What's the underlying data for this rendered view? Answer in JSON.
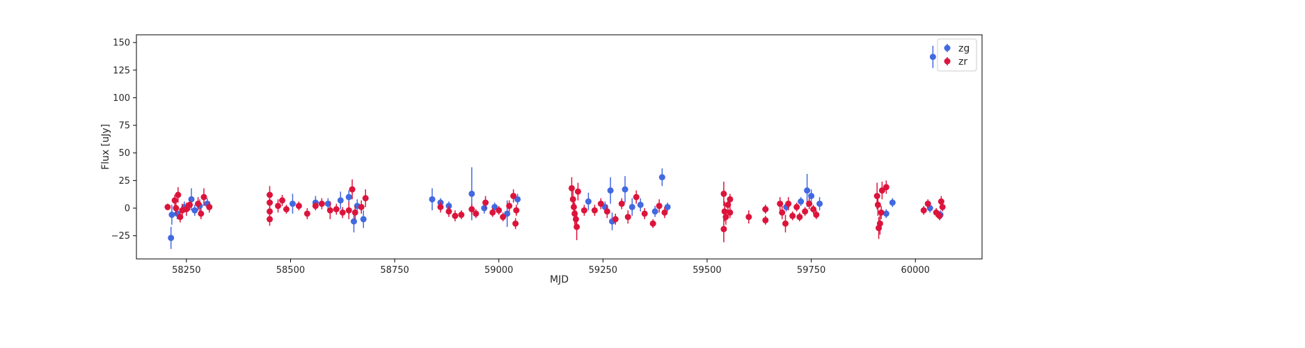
{
  "chart_data": {
    "type": "scatter",
    "xlabel": "MJD",
    "ylabel": "Flux [uJy]",
    "xlim": [
      58130,
      60160
    ],
    "ylim": [
      -46,
      157
    ],
    "xticks": [
      58250,
      58500,
      58750,
      59000,
      59250,
      59500,
      59750,
      60000
    ],
    "yticks": [
      -25,
      0,
      25,
      50,
      75,
      100,
      125,
      150
    ],
    "grid": false,
    "legend_position": "top-right",
    "series": [
      {
        "name": "zg",
        "color": "#4169e1",
        "points": [
          {
            "x": 58213,
            "y": -27,
            "err": 10
          },
          {
            "x": 58215,
            "y": -6,
            "err": 9
          },
          {
            "x": 58228,
            "y": -5,
            "err": 5
          },
          {
            "x": 58245,
            "y": 1,
            "err": 5
          },
          {
            "x": 58262,
            "y": 8,
            "err": 10
          },
          {
            "x": 58270,
            "y": -2,
            "err": 5
          },
          {
            "x": 58282,
            "y": 2,
            "err": 6
          },
          {
            "x": 58300,
            "y": 4,
            "err": 5
          },
          {
            "x": 58505,
            "y": 4,
            "err": 9
          },
          {
            "x": 58560,
            "y": 5,
            "err": 6
          },
          {
            "x": 58590,
            "y": 4,
            "err": 5
          },
          {
            "x": 58620,
            "y": 7,
            "err": 8
          },
          {
            "x": 58640,
            "y": 10,
            "err": 6
          },
          {
            "x": 58652,
            "y": -12,
            "err": 10
          },
          {
            "x": 58660,
            "y": 2,
            "err": 6
          },
          {
            "x": 58675,
            "y": -10,
            "err": 8
          },
          {
            "x": 58840,
            "y": 8,
            "err": 10
          },
          {
            "x": 58860,
            "y": 5,
            "err": 4
          },
          {
            "x": 58880,
            "y": 2,
            "err": 4
          },
          {
            "x": 58935,
            "y": 13,
            "err": 24
          },
          {
            "x": 58965,
            "y": 0,
            "err": 5
          },
          {
            "x": 58990,
            "y": 1,
            "err": 4
          },
          {
            "x": 59020,
            "y": -5,
            "err": 12
          },
          {
            "x": 59045,
            "y": 8,
            "err": 5
          },
          {
            "x": 59215,
            "y": 6,
            "err": 8
          },
          {
            "x": 59255,
            "y": 1,
            "err": 5
          },
          {
            "x": 59268,
            "y": 16,
            "err": 12
          },
          {
            "x": 59272,
            "y": -12,
            "err": 8
          },
          {
            "x": 59303,
            "y": 17,
            "err": 12
          },
          {
            "x": 59320,
            "y": 1,
            "err": 8
          },
          {
            "x": 59340,
            "y": 3,
            "err": 6
          },
          {
            "x": 59375,
            "y": -3,
            "err": 5
          },
          {
            "x": 59392,
            "y": 28,
            "err": 8
          },
          {
            "x": 59405,
            "y": 1,
            "err": 4
          },
          {
            "x": 59640,
            "y": -1,
            "err": 4
          },
          {
            "x": 59690,
            "y": 1,
            "err": 4
          },
          {
            "x": 59725,
            "y": 6,
            "err": 4
          },
          {
            "x": 59740,
            "y": 16,
            "err": 15
          },
          {
            "x": 59750,
            "y": 11,
            "err": 6
          },
          {
            "x": 59770,
            "y": 4,
            "err": 6
          },
          {
            "x": 59930,
            "y": -5,
            "err": 4
          },
          {
            "x": 59945,
            "y": 5,
            "err": 4
          },
          {
            "x": 60035,
            "y": 0,
            "err": 4
          },
          {
            "x": 60042,
            "y": 137,
            "err": 10
          },
          {
            "x": 60060,
            "y": -6,
            "err": 4
          }
        ]
      },
      {
        "name": "zr",
        "color": "#dc143c",
        "points": [
          {
            "x": 58205,
            "y": 1,
            "err": 3
          },
          {
            "x": 58222,
            "y": 7,
            "err": 5
          },
          {
            "x": 58225,
            "y": 0,
            "err": 6
          },
          {
            "x": 58230,
            "y": 12,
            "err": 7
          },
          {
            "x": 58235,
            "y": -8,
            "err": 5
          },
          {
            "x": 58240,
            "y": -2,
            "err": 6
          },
          {
            "x": 58250,
            "y": -1,
            "err": 6
          },
          {
            "x": 58258,
            "y": 3,
            "err": 5
          },
          {
            "x": 58278,
            "y": 4,
            "err": 6
          },
          {
            "x": 58285,
            "y": -5,
            "err": 5
          },
          {
            "x": 58292,
            "y": 10,
            "err": 8
          },
          {
            "x": 58305,
            "y": 1,
            "err": 5
          },
          {
            "x": 58450,
            "y": 12,
            "err": 8
          },
          {
            "x": 58450,
            "y": 5,
            "err": 8
          },
          {
            "x": 58450,
            "y": -3,
            "err": 7
          },
          {
            "x": 58450,
            "y": -10,
            "err": 6
          },
          {
            "x": 58470,
            "y": 2,
            "err": 6
          },
          {
            "x": 58480,
            "y": 7,
            "err": 5
          },
          {
            "x": 58490,
            "y": -1,
            "err": 4
          },
          {
            "x": 58520,
            "y": 2,
            "err": 4
          },
          {
            "x": 58540,
            "y": -5,
            "err": 5
          },
          {
            "x": 58560,
            "y": 2,
            "err": 4
          },
          {
            "x": 58575,
            "y": 4,
            "err": 5
          },
          {
            "x": 58595,
            "y": -2,
            "err": 8
          },
          {
            "x": 58610,
            "y": -1,
            "err": 5
          },
          {
            "x": 58625,
            "y": -4,
            "err": 5
          },
          {
            "x": 58640,
            "y": -2,
            "err": 8
          },
          {
            "x": 58648,
            "y": 17,
            "err": 9
          },
          {
            "x": 58655,
            "y": -4,
            "err": 6
          },
          {
            "x": 58670,
            "y": 1,
            "err": 6
          },
          {
            "x": 58680,
            "y": 9,
            "err": 8
          },
          {
            "x": 58860,
            "y": 1,
            "err": 5
          },
          {
            "x": 58880,
            "y": -3,
            "err": 5
          },
          {
            "x": 58895,
            "y": -7,
            "err": 5
          },
          {
            "x": 58910,
            "y": -6,
            "err": 4
          },
          {
            "x": 58935,
            "y": -1,
            "err": 5
          },
          {
            "x": 58945,
            "y": -5,
            "err": 4
          },
          {
            "x": 58968,
            "y": 5,
            "err": 6
          },
          {
            "x": 58985,
            "y": -4,
            "err": 4
          },
          {
            "x": 59000,
            "y": -2,
            "err": 4
          },
          {
            "x": 59010,
            "y": -8,
            "err": 4
          },
          {
            "x": 59025,
            "y": 2,
            "err": 5
          },
          {
            "x": 59035,
            "y": 11,
            "err": 6
          },
          {
            "x": 59040,
            "y": -14,
            "err": 5
          },
          {
            "x": 59042,
            "y": -2,
            "err": 5
          },
          {
            "x": 59175,
            "y": 18,
            "err": 10
          },
          {
            "x": 59178,
            "y": 8,
            "err": 8
          },
          {
            "x": 59180,
            "y": 1,
            "err": 8
          },
          {
            "x": 59182,
            "y": -5,
            "err": 10
          },
          {
            "x": 59185,
            "y": -10,
            "err": 8
          },
          {
            "x": 59187,
            "y": -17,
            "err": 12
          },
          {
            "x": 59190,
            "y": 15,
            "err": 8
          },
          {
            "x": 59205,
            "y": -2,
            "err": 5
          },
          {
            "x": 59230,
            "y": -2,
            "err": 5
          },
          {
            "x": 59245,
            "y": 4,
            "err": 5
          },
          {
            "x": 59260,
            "y": -3,
            "err": 6
          },
          {
            "x": 59280,
            "y": -10,
            "err": 5
          },
          {
            "x": 59295,
            "y": 4,
            "err": 5
          },
          {
            "x": 59310,
            "y": -8,
            "err": 6
          },
          {
            "x": 59330,
            "y": 10,
            "err": 6
          },
          {
            "x": 59350,
            "y": -5,
            "err": 5
          },
          {
            "x": 59370,
            "y": -14,
            "err": 4
          },
          {
            "x": 59385,
            "y": 2,
            "err": 6
          },
          {
            "x": 59398,
            "y": -4,
            "err": 5
          },
          {
            "x": 59540,
            "y": 13,
            "err": 11
          },
          {
            "x": 59540,
            "y": -19,
            "err": 12
          },
          {
            "x": 59542,
            "y": -3,
            "err": 9
          },
          {
            "x": 59545,
            "y": -8,
            "err": 7
          },
          {
            "x": 59550,
            "y": 3,
            "err": 6
          },
          {
            "x": 59555,
            "y": 8,
            "err": 5
          },
          {
            "x": 59555,
            "y": -4,
            "err": 5
          },
          {
            "x": 59600,
            "y": -8,
            "err": 6
          },
          {
            "x": 59640,
            "y": -11,
            "err": 4
          },
          {
            "x": 59640,
            "y": -1,
            "err": 4
          },
          {
            "x": 59675,
            "y": 4,
            "err": 6
          },
          {
            "x": 59680,
            "y": -4,
            "err": 6
          },
          {
            "x": 59688,
            "y": -14,
            "err": 8
          },
          {
            "x": 59695,
            "y": 4,
            "err": 6
          },
          {
            "x": 59705,
            "y": -7,
            "err": 4
          },
          {
            "x": 59715,
            "y": 1,
            "err": 4
          },
          {
            "x": 59722,
            "y": -8,
            "err": 4
          },
          {
            "x": 59735,
            "y": -3,
            "err": 4
          },
          {
            "x": 59745,
            "y": 4,
            "err": 5
          },
          {
            "x": 59755,
            "y": -1,
            "err": 4
          },
          {
            "x": 59762,
            "y": -6,
            "err": 4
          },
          {
            "x": 59908,
            "y": 11,
            "err": 12
          },
          {
            "x": 59910,
            "y": 3,
            "err": 10
          },
          {
            "x": 59912,
            "y": -18,
            "err": 10
          },
          {
            "x": 59915,
            "y": -14,
            "err": 10
          },
          {
            "x": 59920,
            "y": 16,
            "err": 8
          },
          {
            "x": 59930,
            "y": 19,
            "err": 6
          },
          {
            "x": 59918,
            "y": -4,
            "err": 6
          },
          {
            "x": 60020,
            "y": -2,
            "err": 4
          },
          {
            "x": 60030,
            "y": 4,
            "err": 4
          },
          {
            "x": 60050,
            "y": -4,
            "err": 4
          },
          {
            "x": 60058,
            "y": -7,
            "err": 4
          },
          {
            "x": 60062,
            "y": 6,
            "err": 5
          },
          {
            "x": 60065,
            "y": 1,
            "err": 4
          }
        ]
      }
    ]
  }
}
